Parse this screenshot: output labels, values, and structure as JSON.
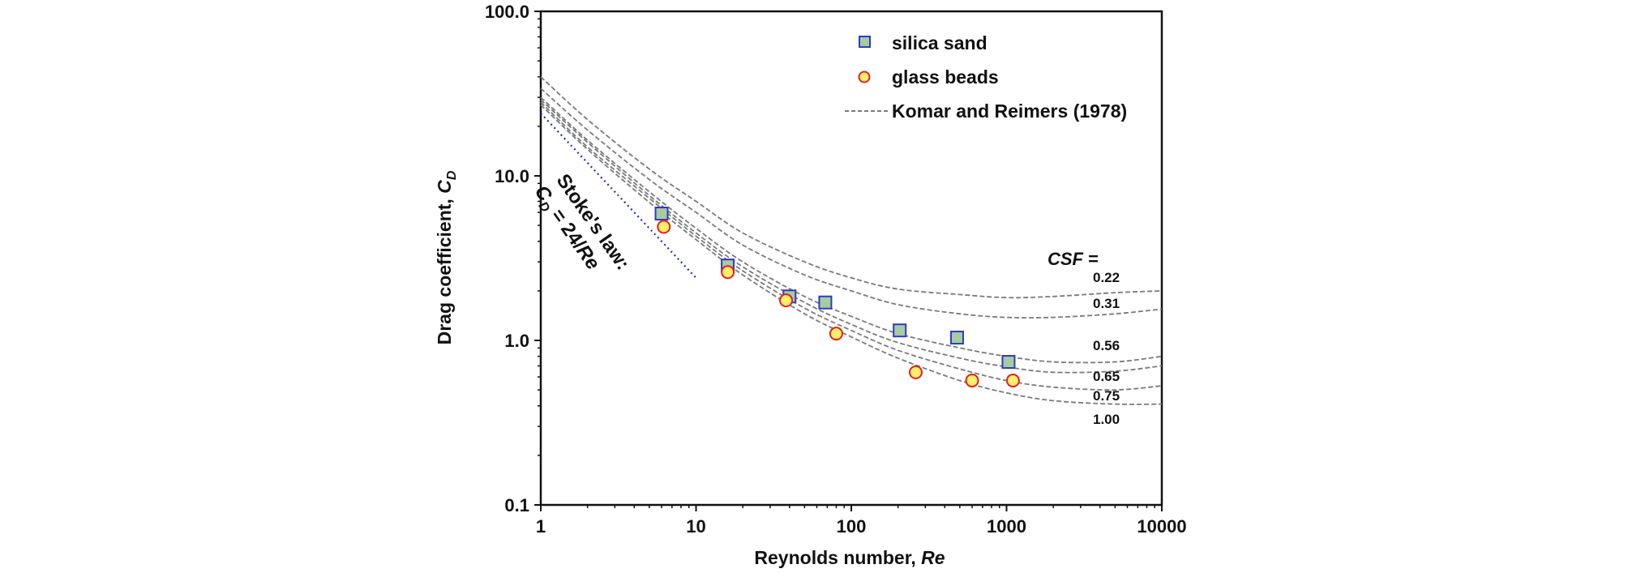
{
  "chart_data": {
    "type": "scatter",
    "xscale": "log",
    "yscale": "log",
    "xlim": [
      1,
      10000
    ],
    "ylim": [
      0.1,
      100
    ],
    "x_ticks": [
      1,
      10,
      100,
      1000,
      10000
    ],
    "x_tick_labels": [
      "1",
      "10",
      "100",
      "1000",
      "10000"
    ],
    "y_ticks": [
      0.1,
      1,
      10,
      100
    ],
    "y_tick_labels": [
      "0.1",
      "1.0",
      "10.0",
      "100.0"
    ],
    "xlabel": "Reynolds number, ",
    "xlabel_italic": "Re",
    "ylabel": "Drag coefficient, ",
    "ylabel_italic": "C",
    "ylabel_sub": "D",
    "series": [
      {
        "name": "silica sand",
        "marker": "square",
        "fill": "#a9cba0",
        "stroke": "#2a3cc8",
        "points": [
          [
            6,
            5.9
          ],
          [
            16,
            2.85
          ],
          [
            40,
            1.85
          ],
          [
            68,
            1.7
          ],
          [
            205,
            1.15
          ],
          [
            480,
            1.04
          ],
          [
            1030,
            0.74
          ]
        ]
      },
      {
        "name": "glass beads",
        "marker": "circle",
        "fill": "#ffef6a",
        "stroke": "#e52020",
        "points": [
          [
            6.2,
            4.9
          ],
          [
            16,
            2.6
          ],
          [
            38,
            1.75
          ],
          [
            80,
            1.1
          ],
          [
            260,
            0.64
          ],
          [
            600,
            0.57
          ],
          [
            1100,
            0.57
          ]
        ]
      }
    ],
    "curves": {
      "legend": "Komar and Reimers (1978)",
      "color": "#7a7a7a",
      "x": [
        1,
        2,
        5,
        10,
        20,
        50,
        100,
        200,
        500,
        1000,
        2000,
        5000,
        10000
      ],
      "lines": [
        {
          "csf": "0.22",
          "y": [
            40,
            22,
            11,
            7.0,
            4.5,
            3.0,
            2.4,
            2.05,
            1.9,
            1.82,
            1.85,
            1.95,
            2.0
          ]
        },
        {
          "csf": "0.31",
          "y": [
            34,
            19,
            9.5,
            6.0,
            3.8,
            2.5,
            2.0,
            1.65,
            1.45,
            1.38,
            1.38,
            1.45,
            1.55
          ]
        },
        {
          "csf": "0.56",
          "y": [
            30,
            16.5,
            8.0,
            4.8,
            3.0,
            1.85,
            1.4,
            1.1,
            0.9,
            0.8,
            0.74,
            0.74,
            0.8
          ]
        },
        {
          "csf": "0.65",
          "y": [
            29,
            16,
            7.6,
            4.5,
            2.8,
            1.7,
            1.25,
            0.97,
            0.78,
            0.69,
            0.64,
            0.65,
            0.7
          ]
        },
        {
          "csf": "0.75",
          "y": [
            28,
            15,
            7.3,
            4.3,
            2.65,
            1.57,
            1.15,
            0.87,
            0.67,
            0.57,
            0.52,
            0.5,
            0.53
          ]
        },
        {
          "csf": "1.00",
          "y": [
            27,
            14.5,
            6.9,
            4.1,
            2.5,
            1.45,
            1.05,
            0.78,
            0.57,
            0.48,
            0.43,
            0.41,
            0.41
          ]
        }
      ]
    },
    "stokes": {
      "color": "#2424d6",
      "x": [
        1,
        10
      ],
      "y": [
        24,
        2.4
      ],
      "label_line1": "Stoke's law:",
      "label_line2_pre": "C",
      "label_line2_sub": "D",
      "label_line2_post": " = 24/",
      "label_line2_italic": "Re"
    },
    "csf_title": "CSF",
    "csf_title_suffix": " ="
  }
}
